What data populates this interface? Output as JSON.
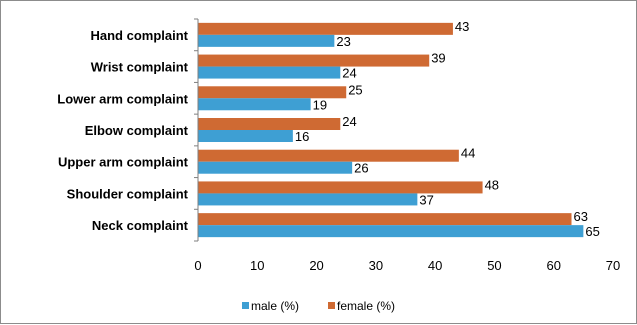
{
  "chart_data": {
    "type": "bar",
    "orientation": "horizontal",
    "title": "",
    "xlabel": "",
    "ylabel": "",
    "categories": [
      "Hand complaint",
      "Wrist complaint",
      "Lower arm complaint",
      "Elbow complaint",
      "Upper arm complaint",
      "Shoulder complaint",
      "Neck complaint"
    ],
    "series": [
      {
        "name": "male (%)",
        "color": "#3e9fd3",
        "values": [
          23,
          24,
          19,
          16,
          26,
          37,
          65
        ]
      },
      {
        "name": "female (%)",
        "color": "#cf6a33",
        "values": [
          43,
          39,
          25,
          24,
          44,
          48,
          63
        ]
      }
    ],
    "xlim": [
      0,
      70
    ],
    "xticks": [
      0,
      10,
      20,
      30,
      40,
      50,
      60,
      70
    ],
    "data_labels": true,
    "grid": false,
    "legend_position": "bottom"
  }
}
